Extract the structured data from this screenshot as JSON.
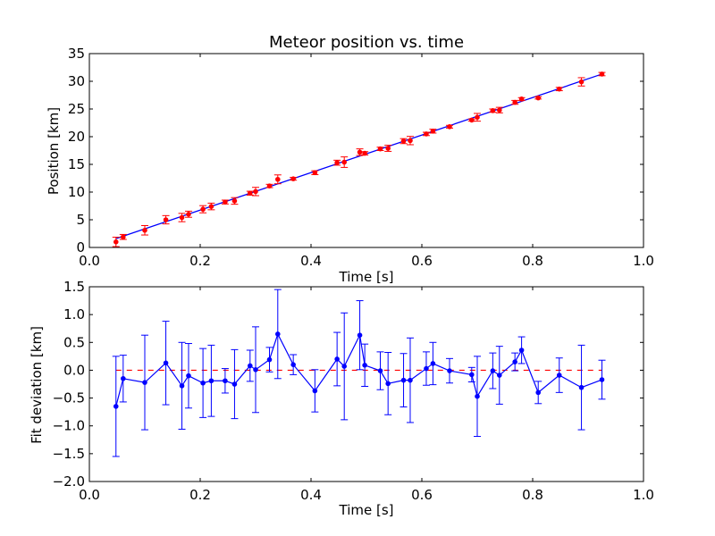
{
  "chart_data": [
    {
      "type": "scatter",
      "title": "Meteor position vs. time",
      "xlabel": "Time [s]",
      "ylabel": "Position [km]",
      "xlim": [
        0.0,
        1.0
      ],
      "ylim": [
        0,
        35
      ],
      "xticks": [
        "0.0",
        "0.2",
        "0.4",
        "0.6",
        "0.8",
        "1.0"
      ],
      "yticks": [
        "0",
        "5",
        "10",
        "15",
        "20",
        "25",
        "30",
        "35"
      ],
      "grid": false,
      "fit_line": {
        "x": [
          0.048,
          0.925
        ],
        "y": [
          1.6,
          31.3
        ],
        "color": "#0000ff"
      },
      "series": [
        {
          "color": "#ff0000",
          "x": [
            0.048,
            0.061,
            0.1,
            0.138,
            0.167,
            0.179,
            0.205,
            0.22,
            0.245,
            0.262,
            0.29,
            0.3,
            0.325,
            0.34,
            0.368,
            0.407,
            0.447,
            0.46,
            0.488,
            0.497,
            0.525,
            0.539,
            0.567,
            0.579,
            0.608,
            0.62,
            0.65,
            0.69,
            0.7,
            0.728,
            0.74,
            0.768,
            0.78,
            0.81,
            0.848,
            0.888,
            0.925
          ],
          "y": [
            1.0,
            1.9,
            3.1,
            5.0,
            5.4,
            6.0,
            6.9,
            7.4,
            8.2,
            8.4,
            9.8,
            10.1,
            11.1,
            12.3,
            12.4,
            13.5,
            15.3,
            15.4,
            17.2,
            17.0,
            17.8,
            17.9,
            19.2,
            19.3,
            20.5,
            21.0,
            21.8,
            23.0,
            23.5,
            24.7,
            24.8,
            26.2,
            26.8,
            27.0,
            28.6,
            29.9,
            31.3
          ],
          "yerr": [
            0.85,
            0.45,
            0.85,
            0.75,
            0.75,
            0.55,
            0.65,
            0.6,
            0.35,
            0.6,
            0.35,
            0.75,
            0.3,
            0.8,
            0.25,
            0.35,
            0.45,
            0.95,
            0.6,
            0.3,
            0.3,
            0.55,
            0.45,
            0.75,
            0.3,
            0.35,
            0.25,
            0.2,
            0.7,
            0.3,
            0.5,
            0.35,
            0.25,
            0.2,
            0.3,
            0.75,
            0.3
          ]
        }
      ]
    },
    {
      "type": "line",
      "xlabel": "Time [s]",
      "ylabel": "Fit deviation [km]",
      "xlim": [
        0.0,
        1.0
      ],
      "ylim": [
        -2.0,
        1.5
      ],
      "xticks": [
        "0.0",
        "0.2",
        "0.4",
        "0.6",
        "0.8",
        "1.0"
      ],
      "yticks": [
        "−2.0",
        "−1.5",
        "−1.0",
        "−0.5",
        "0.0",
        "0.5",
        "1.0",
        "1.5"
      ],
      "grid": false,
      "reference_line": {
        "y": 0.0,
        "color": "#ff0000",
        "style": "dashed"
      },
      "series": [
        {
          "color": "#0000ff",
          "x": [
            0.048,
            0.061,
            0.1,
            0.138,
            0.167,
            0.179,
            0.205,
            0.22,
            0.245,
            0.262,
            0.29,
            0.3,
            0.325,
            0.34,
            0.368,
            0.407,
            0.447,
            0.46,
            0.488,
            0.497,
            0.525,
            0.539,
            0.567,
            0.579,
            0.608,
            0.62,
            0.65,
            0.69,
            0.7,
            0.728,
            0.74,
            0.768,
            0.78,
            0.81,
            0.848,
            0.888,
            0.925
          ],
          "y": [
            -0.65,
            -0.15,
            -0.22,
            0.13,
            -0.28,
            -0.1,
            -0.23,
            -0.19,
            -0.19,
            -0.25,
            0.08,
            0.01,
            0.19,
            0.65,
            0.1,
            -0.37,
            0.2,
            0.07,
            0.63,
            0.09,
            -0.01,
            -0.24,
            -0.18,
            -0.18,
            0.03,
            0.12,
            -0.01,
            -0.08,
            -0.47,
            -0.01,
            -0.09,
            0.15,
            0.36,
            -0.4,
            -0.09,
            -0.31,
            -0.17
          ],
          "yerr": [
            0.9,
            0.42,
            0.85,
            0.75,
            0.78,
            0.58,
            0.62,
            0.64,
            0.22,
            0.62,
            0.28,
            0.77,
            0.22,
            0.8,
            0.18,
            0.38,
            0.48,
            0.96,
            0.62,
            0.38,
            0.34,
            0.56,
            0.48,
            0.76,
            0.3,
            0.38,
            0.22,
            0.13,
            0.72,
            0.32,
            0.52,
            0.16,
            0.24,
            0.2,
            0.31,
            0.76,
            0.35
          ]
        }
      ]
    }
  ]
}
